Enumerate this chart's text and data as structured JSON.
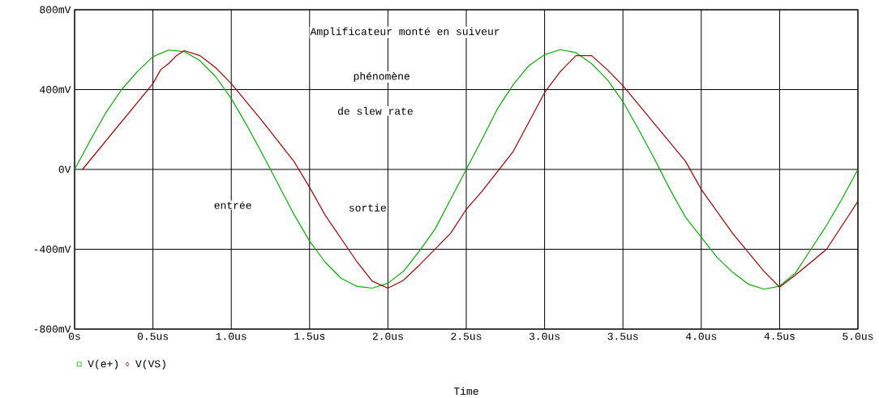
{
  "chart_data": {
    "type": "line",
    "xlabel": "Time",
    "annotations": [
      "Amplificateur  monté  en  suiveur",
      "phénomène",
      "de slew rate",
      "entrée",
      "sortie"
    ],
    "xlim": [
      0,
      5
    ],
    "ylim": [
      -800,
      800
    ],
    "xticks": [
      {
        "value": 0,
        "label": "0s"
      },
      {
        "value": 0.5,
        "label": "0.5us"
      },
      {
        "value": 1,
        "label": "1.0us"
      },
      {
        "value": 1.5,
        "label": "1.5us"
      },
      {
        "value": 2,
        "label": "2.0us"
      },
      {
        "value": 2.5,
        "label": "2.5us"
      },
      {
        "value": 3,
        "label": "3.0us"
      },
      {
        "value": 3.5,
        "label": "3.5us"
      },
      {
        "value": 4,
        "label": "4.0us"
      },
      {
        "value": 4.5,
        "label": "4.5us"
      },
      {
        "value": 5,
        "label": "5.0us"
      }
    ],
    "yticks": [
      {
        "value": -800,
        "label": "-800mV"
      },
      {
        "value": -400,
        "label": "-400mV"
      },
      {
        "value": 0,
        "label": "0V"
      },
      {
        "value": 400,
        "label": "400mV"
      },
      {
        "value": 800,
        "label": "800mV"
      }
    ],
    "grid": true,
    "legend": "bottom left",
    "series": [
      {
        "name": "V(e+)",
        "color": "#00b000",
        "x": [
          0,
          0.1,
          0.2,
          0.3,
          0.4,
          0.5,
          0.6,
          0.7,
          0.8,
          0.9,
          1.0,
          1.1,
          1.2,
          1.3,
          1.4,
          1.5,
          1.6,
          1.7,
          1.8,
          1.9,
          2.0,
          2.1,
          2.2,
          2.3,
          2.4,
          2.5,
          2.6,
          2.7,
          2.8,
          2.9,
          3.0,
          3.1,
          3.2,
          3.3,
          3.4,
          3.5,
          3.6,
          3.7,
          3.8,
          3.9,
          4.0,
          4.1,
          4.2,
          4.3,
          4.4,
          4.5,
          4.6,
          4.7,
          4.8,
          4.9,
          5.0
        ],
        "values": [
          0,
          145,
          285,
          400,
          490,
          565,
          598,
          590,
          545,
          465,
          355,
          220,
          75,
          -75,
          -225,
          -360,
          -465,
          -545,
          -585,
          -595,
          -570,
          -510,
          -410,
          -300,
          -150,
          0,
          150,
          305,
          425,
          520,
          575,
          600,
          585,
          530,
          450,
          340,
          200,
          55,
          -100,
          -240,
          -340,
          -440,
          -515,
          -575,
          -600,
          -585,
          -520,
          -400,
          -280,
          -145,
          0
        ]
      },
      {
        "name": "V(VS)",
        "color": "#a00000",
        "x": [
          0.05,
          0.5,
          0.55,
          0.6,
          0.65,
          0.7,
          0.8,
          0.9,
          1.0,
          1.2,
          1.4,
          1.5,
          1.6,
          1.8,
          1.9,
          2.0,
          2.1,
          2.2,
          2.4,
          2.5,
          2.6,
          2.8,
          3.0,
          3.1,
          3.2,
          3.3,
          3.4,
          3.5,
          3.7,
          3.9,
          4.0,
          4.2,
          4.4,
          4.5,
          4.6,
          4.8,
          5.0
        ],
        "values": [
          0,
          430,
          500,
          530,
          570,
          595,
          570,
          510,
          430,
          240,
          40,
          -90,
          -230,
          -460,
          -560,
          -595,
          -555,
          -480,
          -320,
          -200,
          -110,
          90,
          385,
          490,
          570,
          570,
          500,
          420,
          230,
          40,
          -100,
          -320,
          -510,
          -590,
          -530,
          -400,
          -160
        ]
      }
    ]
  }
}
